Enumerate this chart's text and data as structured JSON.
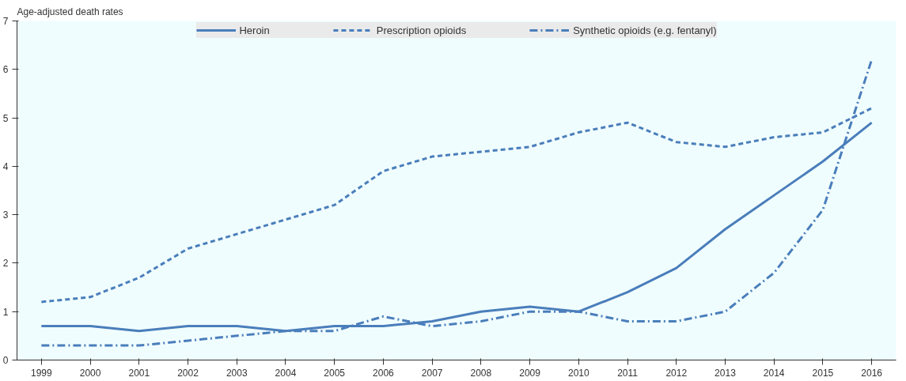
{
  "chart_data": {
    "type": "line",
    "ylabel": "Age-adjusted death rates",
    "categories": [
      "1999",
      "2000",
      "2001",
      "2002",
      "2003",
      "2004",
      "2005",
      "2006",
      "2007",
      "2008",
      "2009",
      "2010",
      "2011",
      "2012",
      "2013",
      "2014",
      "2015",
      "2016"
    ],
    "series": [
      {
        "name": "Heroin",
        "color": "#4a7ebb",
        "line_style": "solid",
        "values": [
          0.7,
          0.7,
          0.6,
          0.7,
          0.7,
          0.6,
          0.7,
          0.7,
          0.8,
          1.0,
          1.1,
          1.0,
          1.4,
          1.9,
          2.7,
          3.4,
          4.1,
          4.9
        ]
      },
      {
        "name": "Prescription opioids",
        "color": "#4a7ebb",
        "line_style": "dashed",
        "values": [
          1.2,
          1.3,
          1.7,
          2.3,
          2.6,
          2.9,
          3.2,
          3.9,
          4.2,
          4.3,
          4.4,
          4.7,
          4.9,
          4.5,
          4.4,
          4.6,
          4.7,
          5.2
        ]
      },
      {
        "name": "Synthetic opioids (e.g. fentanyl)",
        "color": "#4a7ebb",
        "line_style": "dashdot",
        "values": [
          0.3,
          0.3,
          0.3,
          0.4,
          0.5,
          0.6,
          0.6,
          0.9,
          0.7,
          0.8,
          1.0,
          1.0,
          0.8,
          0.8,
          1.0,
          1.8,
          3.1,
          6.2
        ]
      }
    ],
    "ylim": [
      0,
      7
    ],
    "yticks": [
      0,
      1,
      2,
      3,
      4,
      5,
      6,
      7
    ],
    "grid": false,
    "legend": "top",
    "marker": "none"
  }
}
